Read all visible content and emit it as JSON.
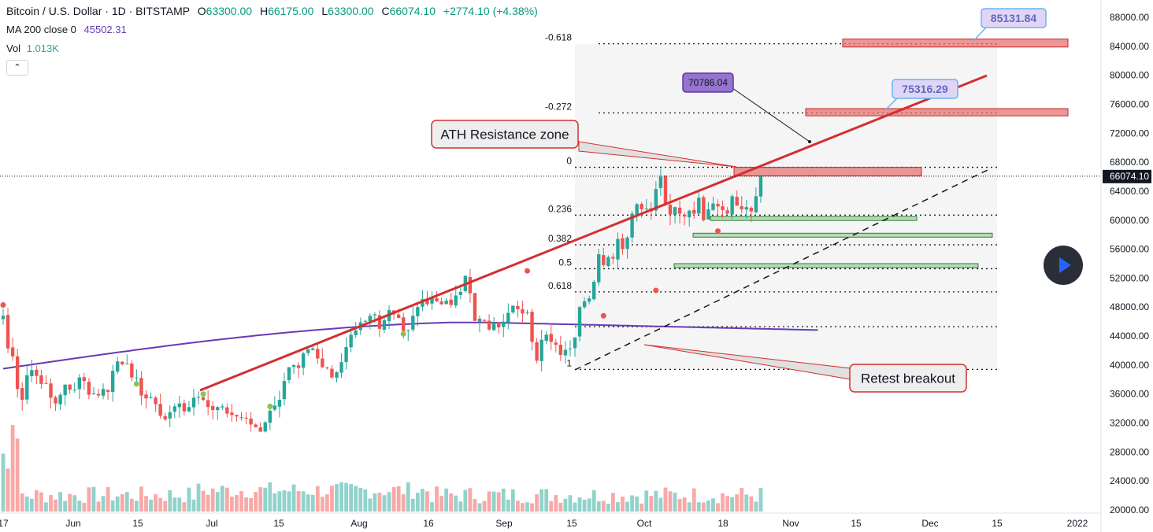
{
  "header": {
    "symbol": "Bitcoin / U.S. Dollar · 1D · BITSTAMP",
    "o_label": "O",
    "o_value": "63300.00",
    "h_label": "H",
    "h_value": "66175.00",
    "l_label": "L",
    "l_value": "63300.00",
    "c_label": "C",
    "c_value": "66074.10",
    "change": "+2774.10 (+4.38%)",
    "ma_label": "MA 200 close 0",
    "ma_value": "45502.31",
    "vol_label": "Vol",
    "vol_value": "1.013K",
    "collapse_icon": "chevron-up-icon"
  },
  "colors": {
    "up": "#26a69a",
    "down": "#ef5350",
    "ma": "#673ab7",
    "trend": "#d32f2f",
    "accent": "#2962ff"
  },
  "chart_data": {
    "type": "candlestick",
    "ylim": [
      20000,
      90000
    ],
    "y_ticks": [
      "88000.00",
      "84000.00",
      "80000.00",
      "76000.00",
      "72000.00",
      "68000.00",
      "64000.00",
      "60000.00",
      "56000.00",
      "52000.00",
      "48000.00",
      "44000.00",
      "40000.00",
      "36000.00",
      "32000.00",
      "28000.00",
      "24000.00",
      "20000.00"
    ],
    "x_ticks": [
      "17",
      "Jun",
      "15",
      "Jul",
      "15",
      "Aug",
      "16",
      "Sep",
      "15",
      "Oct",
      "18",
      "Nov",
      "15",
      "Dec",
      "15",
      "2022"
    ],
    "last_price": "66074.10",
    "fib_levels": [
      {
        "label": "-0.618",
        "price": 84350
      },
      {
        "label": "-0.272",
        "price": 74800
      },
      {
        "label": "0",
        "price": 67300
      },
      {
        "label": "0.236",
        "price": 60700
      },
      {
        "label": "0.382",
        "price": 56600
      },
      {
        "label": "0.5",
        "price": 53300
      },
      {
        "label": "0.618",
        "price": 50100
      },
      {
        "label": "",
        "price": 45300
      },
      {
        "label": "1",
        "price": 39400
      }
    ],
    "annotations": [
      {
        "text": "ATH Resistance zone"
      },
      {
        "text": "Retest breakout"
      },
      {
        "text": "70786.04"
      },
      {
        "text": "75316.29"
      },
      {
        "text": "85131.84"
      }
    ],
    "series": [
      {
        "name": "Close",
        "values": [
          46800,
          42300,
          41200,
          36700,
          35200,
          38600,
          39300,
          38500,
          37400,
          37500,
          35500,
          34700,
          35900,
          37300,
          36600,
          36600,
          38300,
          37800,
          35900,
          36100,
          35800,
          36700,
          36300,
          39200,
          40500,
          40100,
          40200,
          38300,
          38300,
          35800,
          35400,
          35600,
          34600,
          33000,
          32500,
          33500,
          34300,
          34700,
          33600,
          34200,
          35500,
          35600,
          35200,
          34200,
          33800,
          34200,
          34300,
          33300,
          33100,
          32900,
          32800,
          32700,
          31800,
          31400,
          30800,
          32100,
          33700,
          34400,
          35200,
          37800,
          39700,
          40000,
          39600,
          41600,
          42200,
          42300,
          40900,
          39700,
          39600,
          38300,
          39000,
          40400,
          42500,
          44200,
          44800,
          45900,
          46100,
          46800,
          47000,
          45000,
          46200,
          47600,
          47000,
          46500,
          44700,
          44800,
          46800,
          48000,
          49100,
          48400,
          49300,
          48800,
          48400,
          48900,
          48300,
          49600,
          50100,
          52300,
          49900,
          46100,
          46400,
          46100,
          44900,
          45900,
          45200,
          46000,
          47200,
          48200,
          47700,
          47100,
          47300,
          43200,
          40600,
          43500,
          44200,
          43200,
          42800,
          41400,
          42100,
          42300,
          43800,
          48000,
          48800,
          49200,
          51500,
          55300,
          53800,
          54900,
          54700,
          57400,
          56000,
          57600,
          60900,
          62200,
          61500,
          61600,
          61200,
          64300,
          66000,
          62100,
          60800,
          61800,
          60900,
          60500,
          61300,
          60900,
          63100,
          60000,
          61500,
          62300,
          61900,
          61400,
          60900,
          63300,
          62000,
          61500,
          61800,
          61200,
          63300,
          66074
        ]
      }
    ]
  }
}
